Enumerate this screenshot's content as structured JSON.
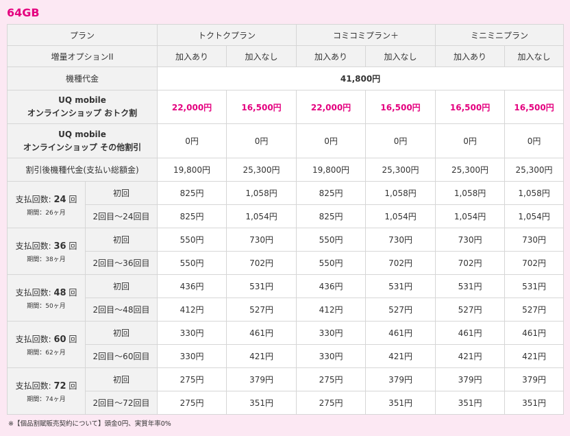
{
  "capacity": "64GB",
  "header": {
    "plan_label": "プラン",
    "plans": [
      "トクトクプラン",
      "コミコミプラン＋",
      "ミニミニプラン"
    ],
    "option_label": "増量オプションII",
    "options": [
      "加入あり",
      "加入なし",
      "加入あり",
      "加入なし",
      "加入あり",
      "加入なし"
    ]
  },
  "device_price": {
    "label": "機種代金",
    "value": "41,800円"
  },
  "otoku": {
    "label1": "UQ mobile",
    "label2": "オンラインショップ おトク割",
    "values": [
      "22,000円",
      "16,500円",
      "22,000円",
      "16,500円",
      "16,500円",
      "16,500円"
    ]
  },
  "other_discount": {
    "label1": "UQ mobile",
    "label2": "オンラインショップ その他割引",
    "values": [
      "0円",
      "0円",
      "0円",
      "0円",
      "0円",
      "0円"
    ]
  },
  "total": {
    "label": "割引後機種代金(支払い総額金)",
    "values": [
      "19,800円",
      "25,300円",
      "19,800円",
      "25,300円",
      "25,300円",
      "25,300円"
    ]
  },
  "payments": [
    {
      "title_pre": "支払回数:",
      "count": "24",
      "title_post": "回",
      "period": "期間：26ヶ月",
      "first_label": "初回",
      "first": [
        "825円",
        "1,058円",
        "825円",
        "1,058円",
        "1,058円",
        "1,058円"
      ],
      "rest_label": "2回目〜24回目",
      "rest": [
        "825円",
        "1,054円",
        "825円",
        "1,054円",
        "1,054円",
        "1,054円"
      ]
    },
    {
      "title_pre": "支払回数:",
      "count": "36",
      "title_post": "回",
      "period": "期間：38ヶ月",
      "first_label": "初回",
      "first": [
        "550円",
        "730円",
        "550円",
        "730円",
        "730円",
        "730円"
      ],
      "rest_label": "2回目〜36回目",
      "rest": [
        "550円",
        "702円",
        "550円",
        "702円",
        "702円",
        "702円"
      ]
    },
    {
      "title_pre": "支払回数:",
      "count": "48",
      "title_post": "回",
      "period": "期間：50ヶ月",
      "first_label": "初回",
      "first": [
        "436円",
        "531円",
        "436円",
        "531円",
        "531円",
        "531円"
      ],
      "rest_label": "2回目〜48回目",
      "rest": [
        "412円",
        "527円",
        "412円",
        "527円",
        "527円",
        "527円"
      ]
    },
    {
      "title_pre": "支払回数:",
      "count": "60",
      "title_post": "回",
      "period": "期間：62ヶ月",
      "first_label": "初回",
      "first": [
        "330円",
        "461円",
        "330円",
        "461円",
        "461円",
        "461円"
      ],
      "rest_label": "2回目〜60回目",
      "rest": [
        "330円",
        "421円",
        "330円",
        "421円",
        "421円",
        "421円"
      ]
    },
    {
      "title_pre": "支払回数:",
      "count": "72",
      "title_post": "回",
      "period": "期間：74ヶ月",
      "first_label": "初回",
      "first": [
        "275円",
        "379円",
        "275円",
        "379円",
        "379円",
        "379円"
      ],
      "rest_label": "2回目〜72回目",
      "rest": [
        "275円",
        "351円",
        "275円",
        "351円",
        "351円",
        "351円"
      ]
    }
  ],
  "footnote": "※【個品割賦販売契約について】頭金0円、実質年率0%",
  "colors": {
    "accent": "#e4007f",
    "header_bg": "#f2f2f2",
    "page_bg": "#fce8f3"
  }
}
